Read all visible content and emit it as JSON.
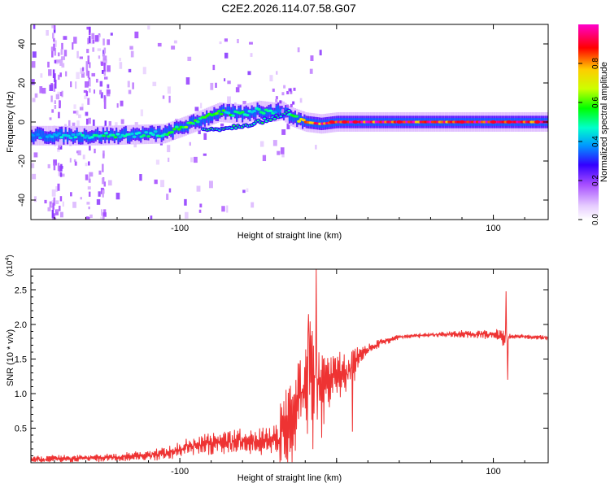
{
  "title": "C2E2.2026.114.07.58.G07",
  "chart_data": [
    {
      "type": "heatmap",
      "xlabel": "Height of straight line (km)",
      "ylabel": "Frequency (Hz)",
      "xlim": [
        -195,
        135
      ],
      "ylim": [
        -50,
        50
      ],
      "xticks": [
        -100,
        0,
        100
      ],
      "xtick_labels": [
        "-100",
        "",
        "100"
      ],
      "yticks": [
        -40,
        -20,
        0,
        20,
        40
      ],
      "ytick_labels": [
        "-40",
        "-20",
        "0",
        "20",
        "40"
      ],
      "colorbar": {
        "label": "Normalized spectral amplitude",
        "range": [
          0.0,
          1.0
        ],
        "ticks": [
          0.0,
          0.2,
          0.4,
          0.6,
          0.8
        ],
        "tick_labels": [
          "0.0",
          "0.2",
          "0.4",
          "0.6",
          "0.8"
        ],
        "colormap": [
          "#ffffff",
          "#e6ccff",
          "#a64dff",
          "#3300ff",
          "#0099ff",
          "#00ffcc",
          "#00ff00",
          "#ccff00",
          "#ffcc00",
          "#ff0000",
          "#ff00cc"
        ]
      },
      "ridge": {
        "x": [
          -195,
          -150,
          -110,
          -100,
          -90,
          -75,
          -60,
          -50,
          -40,
          -35,
          -30,
          -20,
          -10,
          0,
          20,
          60,
          100,
          135
        ],
        "y": [
          -7,
          -7,
          -6,
          -3,
          0,
          5,
          4,
          6,
          5,
          6,
          3,
          0,
          -1,
          0,
          0,
          0,
          0,
          0
        ],
        "amplitude": [
          0.4,
          0.5,
          0.5,
          0.6,
          0.6,
          0.55,
          0.5,
          0.5,
          0.45,
          0.4,
          0.5,
          0.8,
          0.9,
          0.9,
          0.95,
          0.95,
          1.0,
          0.95
        ]
      },
      "secondary_ridge": {
        "x": [
          -85,
          -70,
          -55,
          -45,
          -38,
          -30
        ],
        "y": [
          -4,
          -3,
          -1,
          1,
          3,
          5
        ]
      }
    },
    {
      "type": "line",
      "xlabel": "Height of straight line (km)",
      "ylabel": "SNR (10 * v/v)",
      "scale_label": "(x10",
      "scale_exponent": "4",
      "scale_close": ")",
      "xlim": [
        -195,
        135
      ],
      "ylim": [
        0,
        2.8
      ],
      "xticks": [
        -100,
        0,
        100
      ],
      "xtick_labels": [
        "-100",
        "",
        "100"
      ],
      "yticks": [
        0.5,
        1.0,
        1.5,
        2.0,
        2.5
      ],
      "ytick_labels": [
        "0.5",
        "1.0",
        "1.5",
        "2.0",
        "2.5"
      ],
      "series": [
        {
          "color": "#ee3333",
          "x": [
            -195,
            -170,
            -150,
            -130,
            -110,
            -100,
            -90,
            -80,
            -70,
            -60,
            -50,
            -40,
            -35,
            -30,
            -25,
            -20,
            -15,
            -10,
            -5,
            0,
            5,
            10,
            15,
            20,
            30,
            40,
            60,
            80,
            100,
            105,
            108,
            110,
            115,
            120,
            135
          ],
          "y": [
            0.05,
            0.06,
            0.07,
            0.09,
            0.13,
            0.2,
            0.26,
            0.28,
            0.3,
            0.32,
            0.3,
            0.33,
            0.4,
            0.6,
            0.9,
            1.1,
            1.2,
            1.05,
            1.15,
            1.3,
            1.25,
            1.4,
            1.55,
            1.65,
            1.75,
            1.82,
            1.85,
            1.86,
            1.85,
            1.84,
            1.8,
            1.82,
            1.83,
            1.82,
            1.81
          ],
          "noise": [
            0.04,
            0.05,
            0.05,
            0.06,
            0.08,
            0.1,
            0.12,
            0.14,
            0.16,
            0.16,
            0.16,
            0.2,
            0.45,
            0.6,
            0.7,
            0.65,
            0.8,
            0.7,
            0.45,
            0.3,
            0.25,
            0.25,
            0.12,
            0.08,
            0.05,
            0.03,
            0.03,
            0.05,
            0.06,
            0.08,
            0.2,
            0.04,
            0.03,
            0.03,
            0.03
          ],
          "spikes": [
            {
              "x": -13,
              "y": 2.8
            },
            {
              "x": -18,
              "y": 2.15
            },
            {
              "x": 10,
              "y": 0.45
            },
            {
              "x": 108,
              "y": 2.48
            },
            {
              "x": 109,
              "y": 1.2
            }
          ]
        }
      ]
    }
  ]
}
